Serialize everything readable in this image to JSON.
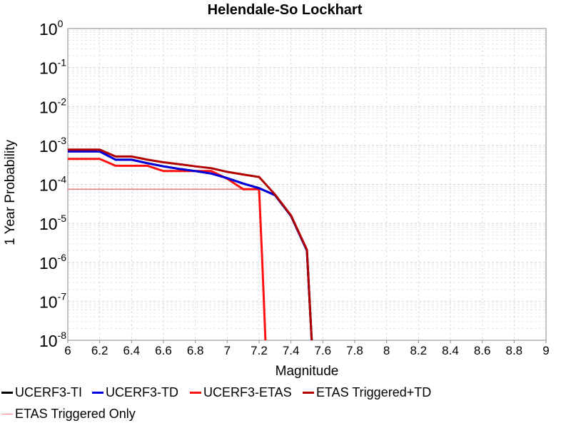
{
  "chart_data": {
    "type": "line",
    "title": "Helendale-So Lockhart",
    "xlabel": "Magnitude",
    "ylabel": "1 Year Probability",
    "xlim": [
      6,
      9
    ],
    "ylim": [
      1e-08,
      1
    ],
    "yscale": "log",
    "grid": true,
    "x_ticks": [
      "6",
      "6.2",
      "6.4",
      "6.6",
      "6.8",
      "7",
      "7.2",
      "7.4",
      "7.6",
      "7.8",
      "8",
      "8.2",
      "8.4",
      "8.6",
      "8.8",
      "9"
    ],
    "y_ticks": [
      {
        "base": "10",
        "exp": "0"
      },
      {
        "base": "10",
        "exp": "-1"
      },
      {
        "base": "10",
        "exp": "-2"
      },
      {
        "base": "10",
        "exp": "-3"
      },
      {
        "base": "10",
        "exp": "-4"
      },
      {
        "base": "10",
        "exp": "-5"
      },
      {
        "base": "10",
        "exp": "-6"
      },
      {
        "base": "10",
        "exp": "-7"
      },
      {
        "base": "10",
        "exp": "-8"
      }
    ],
    "legend_position": "bottom",
    "series": [
      {
        "name": "UCERF3-TI",
        "color": "#000000",
        "width": 3,
        "x": [
          6.0,
          6.2,
          6.3,
          6.4,
          6.5,
          6.6,
          6.7,
          6.8,
          6.9,
          7.0,
          7.1,
          7.2,
          7.3,
          7.4,
          7.5,
          7.53
        ],
        "y": [
          0.0007,
          0.0007,
          0.00043,
          0.00043,
          0.00035,
          0.00029,
          0.00025,
          0.00022,
          0.00019,
          0.000145,
          0.000105,
          8e-05,
          5.3e-05,
          1.55e-05,
          2e-06,
          1e-08
        ]
      },
      {
        "name": "UCERF3-TD",
        "color": "#0000e0",
        "width": 3,
        "x": [
          6.0,
          6.2,
          6.3,
          6.4,
          6.5,
          6.6,
          6.7,
          6.8,
          6.9,
          7.0,
          7.1,
          7.2,
          7.3,
          7.4,
          7.5,
          7.53
        ],
        "y": [
          0.0007,
          0.0007,
          0.00043,
          0.00043,
          0.00035,
          0.00029,
          0.00025,
          0.00022,
          0.00019,
          0.000145,
          0.000105,
          8e-05,
          5.3e-05,
          1.55e-05,
          2e-06,
          1e-08
        ]
      },
      {
        "name": "UCERF3-ETAS",
        "color": "#ff1010",
        "width": 3,
        "x": [
          6.0,
          6.2,
          6.3,
          6.4,
          6.5,
          6.6,
          6.7,
          6.8,
          6.9,
          7.0,
          7.1,
          7.2,
          7.22,
          7.24
        ],
        "y": [
          0.00045,
          0.00045,
          0.0003,
          0.0003,
          0.0003,
          0.00022,
          0.00022,
          0.00022,
          0.00022,
          0.00014,
          7.5e-05,
          7.5e-05,
          1e-06,
          1e-08
        ]
      },
      {
        "name": "ETAS Triggered+TD",
        "color": "#b00000",
        "width": 3,
        "x": [
          6.0,
          6.2,
          6.3,
          6.4,
          6.5,
          6.6,
          6.7,
          6.8,
          6.9,
          7.0,
          7.1,
          7.2,
          7.3,
          7.4,
          7.5,
          7.53
        ],
        "y": [
          0.00078,
          0.00078,
          0.00052,
          0.00052,
          0.00043,
          0.00037,
          0.00033,
          0.00029,
          0.00026,
          0.00021,
          0.00018,
          0.000155,
          5.5e-05,
          1.6e-05,
          2.1e-06,
          1e-08
        ]
      },
      {
        "name": "ETAS Triggered Only",
        "color": "#f08080",
        "width": 1.5,
        "x": [
          6.0,
          7.2,
          7.22,
          7.24
        ],
        "y": [
          7.5e-05,
          7.5e-05,
          1e-06,
          1e-08
        ]
      }
    ]
  }
}
